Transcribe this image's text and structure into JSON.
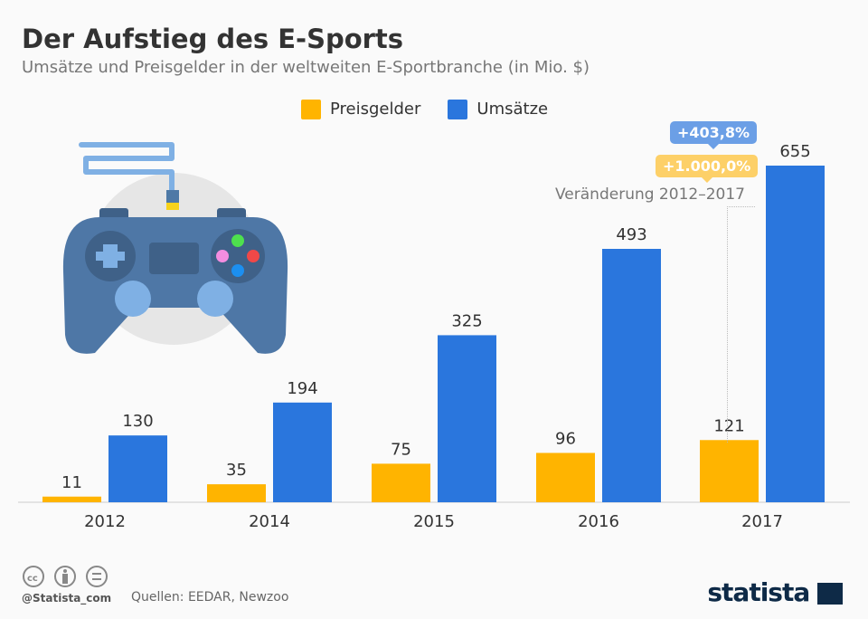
{
  "title": "Der Aufstieg des E-Sports",
  "subtitle": "Umsätze und Preisgelder in der weltweiten E-Sportbranche (in Mio. $)",
  "annotation": {
    "umsatz_change": "+403,8%",
    "preis_change": "+1.000,0%",
    "label": "Veränderung 2012–2017"
  },
  "footer": {
    "handle": "@Statista_com",
    "source": "Quellen: EEDAR, Newzoo",
    "logo": "statista"
  },
  "icons": [
    "cc-icon",
    "by-icon",
    "nd-icon",
    "gamepad-illustration"
  ],
  "chart_data": {
    "type": "bar",
    "title": "Der Aufstieg des E-Sports",
    "categories": [
      "2012",
      "2014",
      "2015",
      "2016",
      "2017"
    ],
    "series": [
      {
        "name": "Preisgelder",
        "color": "#ffb400",
        "values": [
          11,
          35,
          75,
          96,
          121
        ]
      },
      {
        "name": "Umsätze",
        "color": "#2a76dd",
        "values": [
          130,
          194,
          325,
          493,
          655
        ]
      }
    ],
    "ylim": [
      0,
      655
    ],
    "grid": false,
    "legend": "top"
  }
}
